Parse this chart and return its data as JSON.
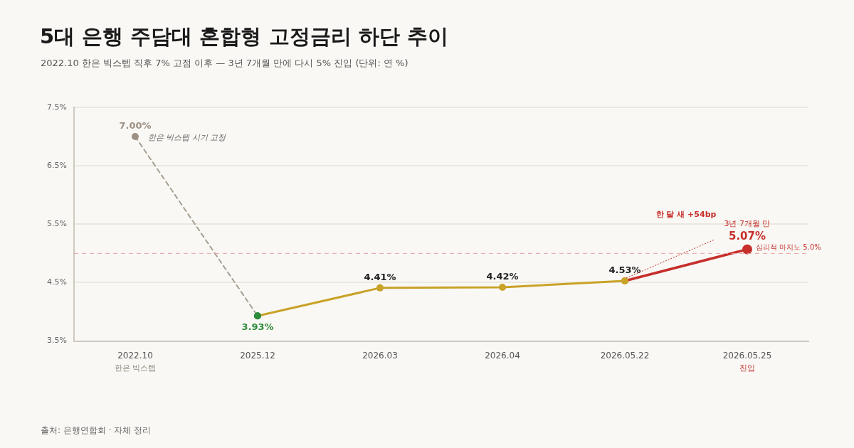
{
  "chart_data": {
    "type": "line",
    "title": "5대 은행 주담대 혼합형 고정금리 하단 추이",
    "subtitle": "2022.10 한은 빅스텝 직후 7% 고점 이후 — 3년 7개월 만에 다시 5% 진입 (단위: 연 %)",
    "categories": [
      "2022.10",
      "2025.12",
      "2026.03",
      "2026.04",
      "2026.05.22",
      "2026.05.25"
    ],
    "series": [
      {
        "color": "#a89f92",
        "line_style": "dashed",
        "colors": [
          "#9c9183",
          "#2e8b3a",
          null,
          null,
          null,
          null
        ],
        "values": [
          7.0,
          3.93,
          null,
          null,
          null,
          null
        ],
        "value_labels": [
          "7.00%",
          null,
          null,
          null,
          null,
          null
        ]
      },
      {
        "color": "#c9a227",
        "line_style": "solid",
        "colors": [
          null,
          "#2e8b3a",
          "#c9a227",
          "#c9a227",
          "#c9a227",
          null
        ],
        "values": [
          null,
          3.93,
          4.41,
          4.42,
          4.53,
          null
        ],
        "value_labels": [
          null,
          "3.93%",
          "4.41%",
          "4.42%",
          "4.53%",
          null
        ]
      },
      {
        "color": "#c62f2a",
        "line_style": "solid",
        "colors": [
          null,
          null,
          null,
          null,
          "#c9a227",
          "#c62f2a"
        ],
        "values": [
          null,
          null,
          null,
          null,
          4.53,
          5.07
        ],
        "value_labels": [
          null,
          null,
          null,
          null,
          null,
          "5.07%"
        ]
      }
    ],
    "ylim": [
      3.5,
      7.5
    ],
    "yticks": [
      {
        "value": 3.5,
        "label": "3.5%"
      },
      {
        "value": 4.5,
        "label": "4.5%"
      },
      {
        "value": 5.5,
        "label": "5.5%"
      },
      {
        "value": 6.5,
        "label": "6.5%"
      },
      {
        "value": 7.5,
        "label": "7.5%"
      }
    ],
    "ref_lines": [
      {
        "axis": "y",
        "value": 5.0,
        "label": "심리적 마지노 5.0%",
        "color": "#e8a3a3",
        "line_style": "dashed"
      }
    ],
    "annotations": [
      {
        "text": "한은 빅스텝 시기 고정",
        "x": "2022.10",
        "y": 7.0
      },
      {
        "text": "3년 7개월 만",
        "x": "2026.05.25",
        "y": 5.07
      },
      "한 달 새 +54bp",
      "한은 빅스텝",
      "진입",
      "출처: 은행연합회 · 자체 정리"
    ],
    "grid": "y",
    "legend": false,
    "marker": "circle"
  }
}
